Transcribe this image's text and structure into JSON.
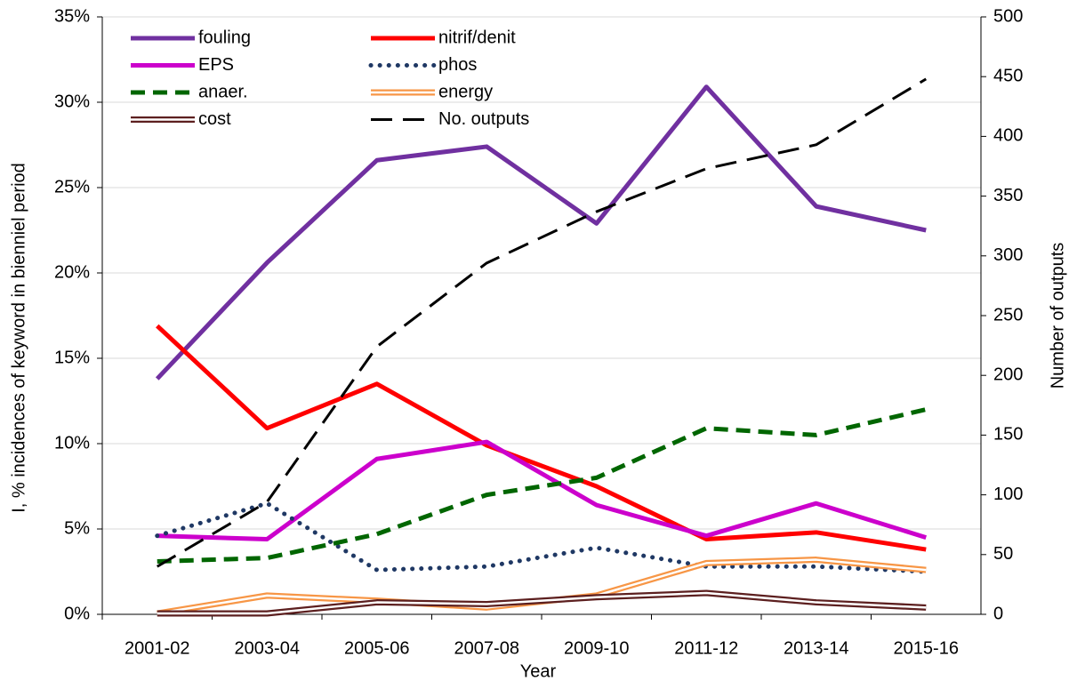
{
  "chart_data": {
    "type": "line",
    "categories": [
      "2001-02",
      "2003-04",
      "2005-06",
      "2007-08",
      "2009-10",
      "2011-12",
      "2013-14",
      "2015-16"
    ],
    "xlabel": "Year",
    "ylabel": "I, % incidences of keyword in bienniel period",
    "y2label": "Number of outputs",
    "ylim": [
      0,
      35
    ],
    "yticks": [
      {
        "value": 0,
        "label": "0%"
      },
      {
        "value": 5,
        "label": "5%"
      },
      {
        "value": 10,
        "label": "10%"
      },
      {
        "value": 15,
        "label": "15%"
      },
      {
        "value": 20,
        "label": "20%"
      },
      {
        "value": 25,
        "label": "25%"
      },
      {
        "value": 30,
        "label": "30%"
      },
      {
        "value": 35,
        "label": "35%"
      }
    ],
    "y2lim": [
      0,
      500
    ],
    "y2ticks": [
      0,
      50,
      100,
      150,
      200,
      250,
      300,
      350,
      400,
      450,
      500
    ],
    "grid": true,
    "legend": "upper left",
    "series": [
      {
        "name": "fouling",
        "color": "#7030a0",
        "style": "solid",
        "values": [
          13.8,
          20.6,
          26.6,
          27.4,
          22.9,
          30.9,
          23.9,
          22.5
        ]
      },
      {
        "name": "nitrif/denit",
        "color": "#ff0000",
        "style": "solid",
        "values": [
          16.9,
          10.9,
          13.5,
          9.9,
          7.5,
          4.4,
          4.8,
          3.8
        ]
      },
      {
        "name": "EPS",
        "color": "#cc00cc",
        "style": "solid",
        "values": [
          4.6,
          4.4,
          9.1,
          10.1,
          6.4,
          4.6,
          6.5,
          4.5
        ]
      },
      {
        "name": "phos",
        "color": "#1f3864",
        "style": "dotted",
        "values": [
          4.6,
          6.5,
          2.6,
          2.8,
          3.9,
          2.8,
          2.8,
          2.5
        ]
      },
      {
        "name": "anaer.",
        "color": "#006600",
        "style": "dashed",
        "values": [
          3.1,
          3.3,
          4.7,
          7.0,
          8.0,
          10.9,
          10.5,
          12.0
        ]
      },
      {
        "name": "energy",
        "color": "#f79646",
        "style": "double",
        "values": [
          0.05,
          1.1,
          0.8,
          0.4,
          1.1,
          3.0,
          3.2,
          2.6
        ]
      },
      {
        "name": "cost",
        "color": "#5c1f1f",
        "style": "double",
        "values": [
          0.05,
          0.05,
          0.7,
          0.6,
          1.0,
          1.25,
          0.7,
          0.4
        ]
      },
      {
        "name": "No. outputs",
        "color": "#000000",
        "style": "longdash",
        "axis": "y2",
        "values": [
          40,
          94,
          224,
          294,
          337,
          373,
          393,
          448
        ]
      }
    ]
  }
}
